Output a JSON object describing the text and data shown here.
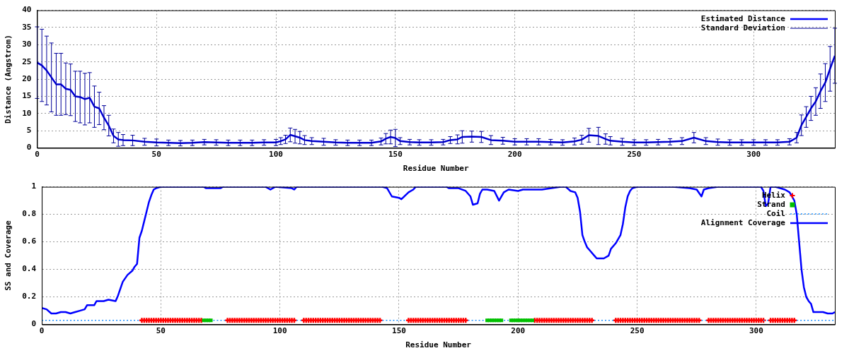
{
  "chart_data": [
    {
      "type": "line",
      "xlabel": "Residue Number",
      "ylabel": "Distance (Angstrom)",
      "xlim": [
        0,
        334
      ],
      "ylim": [
        0,
        40
      ],
      "xticks": [
        0,
        50,
        100,
        150,
        200,
        250,
        300
      ],
      "yticks": [
        0,
        5,
        10,
        15,
        20,
        25,
        30,
        35,
        40
      ],
      "grid": true,
      "legend": "top right",
      "x": [
        0,
        2,
        4,
        6,
        8,
        10,
        12,
        14,
        16,
        18,
        20,
        22,
        24,
        26,
        28,
        30,
        32,
        34,
        36,
        40,
        45,
        50,
        55,
        60,
        65,
        70,
        75,
        80,
        85,
        90,
        95,
        100,
        102,
        104,
        106,
        108,
        110,
        112,
        115,
        120,
        125,
        130,
        135,
        140,
        144,
        146,
        148,
        150,
        152,
        156,
        160,
        165,
        170,
        173,
        176,
        178,
        182,
        186,
        190,
        195,
        200,
        205,
        210,
        215,
        220,
        225,
        228,
        231,
        235,
        238,
        240,
        245,
        250,
        255,
        260,
        265,
        270,
        275,
        280,
        285,
        290,
        295,
        300,
        305,
        310,
        315,
        318,
        320,
        322,
        324,
        326,
        328,
        330,
        332,
        334
      ],
      "series": [
        {
          "name": "Estimated Distance",
          "color": "#0000ff",
          "values": [
            24.8,
            24,
            22.5,
            20.5,
            18.5,
            18.5,
            17.2,
            16.9,
            15,
            14.8,
            14.2,
            14.6,
            12,
            11.5,
            8.8,
            6.5,
            3.5,
            2.5,
            2.3,
            2.2,
            1.8,
            1.6,
            1.5,
            1.4,
            1.5,
            1.7,
            1.6,
            1.5,
            1.5,
            1.5,
            1.6,
            1.6,
            2,
            2.5,
            3.8,
            3.4,
            3,
            2.3,
            2,
            1.8,
            1.6,
            1.5,
            1.5,
            1.5,
            1.9,
            2.7,
            3.2,
            2.9,
            2,
            1.7,
            1.6,
            1.6,
            1.7,
            2.3,
            2.5,
            3.2,
            3.3,
            3.2,
            2.3,
            2.1,
            1.8,
            1.8,
            1.8,
            1.7,
            1.6,
            1.9,
            2.4,
            3.7,
            3.5,
            2.6,
            2.1,
            1.8,
            1.6,
            1.6,
            1.7,
            1.8,
            2,
            3,
            2,
            1.7,
            1.6,
            1.6,
            1.6,
            1.6,
            1.6,
            1.8,
            3,
            6.6,
            9,
            11.5,
            13.5,
            16.5,
            19,
            23,
            26.8
          ]
        },
        {
          "name": "Standard Deviation",
          "color": "#000099",
          "values": [
            24.8,
            24,
            22.5,
            20.5,
            18.5,
            18.5,
            17.2,
            16.9,
            15,
            14.8,
            14.2,
            14.6,
            12,
            11.5,
            8.8,
            6.5,
            3.5,
            2.5,
            2.3,
            2.2,
            1.8,
            1.6,
            1.5,
            1.4,
            1.5,
            1.7,
            1.6,
            1.5,
            1.5,
            1.5,
            1.6,
            1.6,
            2,
            2.5,
            3.8,
            3.4,
            3,
            2.3,
            2,
            1.8,
            1.6,
            1.5,
            1.5,
            1.5,
            1.9,
            2.7,
            3.2,
            2.9,
            2,
            1.7,
            1.6,
            1.6,
            1.7,
            2.3,
            2.5,
            3.2,
            3.3,
            3.2,
            2.3,
            2.1,
            1.8,
            1.8,
            1.8,
            1.7,
            1.6,
            1.9,
            2.4,
            3.7,
            3.5,
            2.6,
            2.1,
            1.8,
            1.6,
            1.6,
            1.7,
            1.8,
            2,
            3,
            2,
            1.7,
            1.6,
            1.6,
            1.6,
            1.6,
            1.6,
            1.8,
            3,
            6.6,
            9,
            11.5,
            13.5,
            16.5,
            19,
            23,
            26.8
          ],
          "errors": [
            10.4,
            10.5,
            10,
            10,
            9,
            9,
            7.5,
            7.5,
            7.3,
            7.5,
            7.5,
            7.3,
            6,
            4.7,
            3.5,
            3,
            2,
            2,
            1.6,
            1.5,
            1,
            1,
            0.8,
            0.8,
            0.8,
            0.8,
            0.8,
            0.8,
            0.8,
            0.8,
            0.8,
            0.9,
            1,
            1.2,
            2,
            2,
            1.8,
            1.3,
            1,
            1,
            0.8,
            0.8,
            0.8,
            0.8,
            1,
            1.5,
            2,
            2.5,
            1,
            0.8,
            0.8,
            0.8,
            0.8,
            1,
            1.3,
            1.8,
            1.6,
            1.6,
            1.3,
            1,
            0.9,
            0.9,
            0.9,
            0.8,
            0.8,
            1,
            1.3,
            2,
            2.5,
            1.5,
            1.2,
            1,
            0.8,
            0.8,
            0.8,
            0.9,
            1,
            1.5,
            1,
            0.9,
            0.8,
            0.8,
            0.8,
            0.8,
            0.8,
            0.9,
            1.5,
            3,
            3,
            3.5,
            4,
            5,
            5.5,
            6.5,
            8
          ]
        }
      ]
    },
    {
      "type": "line",
      "xlabel": "Residue Number",
      "ylabel": "SS and Coverage",
      "xlim": [
        0,
        333
      ],
      "ylim": [
        0,
        1
      ],
      "xticks": [
        0,
        50,
        100,
        150,
        200,
        250,
        300
      ],
      "yticks": [
        0,
        0.2,
        0.4,
        0.6,
        0.8,
        1
      ],
      "grid": true,
      "legend": "top right",
      "series": [
        {
          "name": "Helix",
          "type": "scatter",
          "marker": "cross",
          "color": "#ff0000",
          "x": [
            42,
            43,
            44,
            45,
            46,
            47,
            48,
            49,
            50,
            51,
            52,
            53,
            54,
            55,
            56,
            57,
            58,
            59,
            60,
            61,
            62,
            63,
            64,
            65,
            66,
            67,
            78,
            79,
            80,
            81,
            82,
            83,
            84,
            85,
            86,
            87,
            88,
            89,
            90,
            91,
            92,
            93,
            94,
            95,
            96,
            97,
            98,
            99,
            100,
            101,
            102,
            103,
            104,
            105,
            106,
            110,
            111,
            112,
            113,
            114,
            115,
            116,
            117,
            118,
            119,
            120,
            121,
            122,
            123,
            124,
            125,
            126,
            127,
            128,
            129,
            130,
            131,
            132,
            133,
            134,
            135,
            136,
            137,
            138,
            139,
            140,
            141,
            142,
            154,
            155,
            156,
            157,
            158,
            159,
            160,
            161,
            162,
            163,
            164,
            165,
            166,
            167,
            168,
            169,
            170,
            171,
            172,
            173,
            174,
            175,
            176,
            177,
            178,
            207,
            208,
            209,
            210,
            211,
            212,
            213,
            214,
            215,
            216,
            217,
            218,
            219,
            220,
            221,
            222,
            223,
            224,
            225,
            226,
            227,
            228,
            229,
            230,
            231,
            241,
            242,
            243,
            244,
            245,
            246,
            247,
            248,
            249,
            250,
            251,
            252,
            253,
            254,
            255,
            256,
            257,
            258,
            259,
            260,
            261,
            262,
            263,
            264,
            265,
            266,
            267,
            268,
            269,
            270,
            271,
            272,
            273,
            274,
            275,
            276,
            280,
            281,
            282,
            283,
            284,
            285,
            286,
            287,
            288,
            289,
            290,
            291,
            292,
            293,
            294,
            295,
            296,
            297,
            298,
            299,
            300,
            301,
            302,
            303,
            306,
            307,
            308,
            309,
            310,
            311,
            312,
            313,
            314,
            315,
            316
          ],
          "values": [
            0.03,
            0.03,
            0.03,
            0.03,
            0.03,
            0.03,
            0.03,
            0.03,
            0.03,
            0.03,
            0.03,
            0.03,
            0.03,
            0.03,
            0.03,
            0.03,
            0.03,
            0.03,
            0.03,
            0.03,
            0.03,
            0.03,
            0.03,
            0.03,
            0.03,
            0.03,
            0.03,
            0.03,
            0.03,
            0.03,
            0.03,
            0.03,
            0.03,
            0.03,
            0.03,
            0.03,
            0.03,
            0.03,
            0.03,
            0.03,
            0.03,
            0.03,
            0.03,
            0.03,
            0.03,
            0.03,
            0.03,
            0.03,
            0.03,
            0.03,
            0.03,
            0.03,
            0.03,
            0.03,
            0.03,
            0.03,
            0.03,
            0.03,
            0.03,
            0.03,
            0.03,
            0.03,
            0.03,
            0.03,
            0.03,
            0.03,
            0.03,
            0.03,
            0.03,
            0.03,
            0.03,
            0.03,
            0.03,
            0.03,
            0.03,
            0.03,
            0.03,
            0.03,
            0.03,
            0.03,
            0.03,
            0.03,
            0.03,
            0.03,
            0.03,
            0.03,
            0.03,
            0.03,
            0.03,
            0.03,
            0.03,
            0.03,
            0.03,
            0.03,
            0.03,
            0.03,
            0.03,
            0.03,
            0.03,
            0.03,
            0.03,
            0.03,
            0.03,
            0.03,
            0.03,
            0.03,
            0.03,
            0.03,
            0.03,
            0.03,
            0.03,
            0.03,
            0.03,
            0.03,
            0.03,
            0.03,
            0.03,
            0.03,
            0.03,
            0.03,
            0.03,
            0.03,
            0.03,
            0.03,
            0.03,
            0.03,
            0.03,
            0.03,
            0.03,
            0.03,
            0.03,
            0.03,
            0.03,
            0.03,
            0.03,
            0.03,
            0.03,
            0.03,
            0.03,
            0.03,
            0.03,
            0.03,
            0.03,
            0.03,
            0.03,
            0.03,
            0.03,
            0.03,
            0.03,
            0.03,
            0.03,
            0.03,
            0.03,
            0.03,
            0.03,
            0.03,
            0.03,
            0.03,
            0.03,
            0.03,
            0.03,
            0.03,
            0.03,
            0.03,
            0.03,
            0.03,
            0.03,
            0.03,
            0.03,
            0.03,
            0.03,
            0.03,
            0.03,
            0.03,
            0.03,
            0.03,
            0.03,
            0.03,
            0.03,
            0.03,
            0.03,
            0.03,
            0.03,
            0.03,
            0.03,
            0.03,
            0.03,
            0.03,
            0.03,
            0.03,
            0.03,
            0.03,
            0.03,
            0.03,
            0.03,
            0.03,
            0.03,
            0.03,
            0.03,
            0.03,
            0.03,
            0.03,
            0.03,
            0.03,
            0.03,
            0.03,
            0.03,
            0.03,
            0.03
          ]
        },
        {
          "name": "Strand",
          "type": "scatter",
          "marker": "square",
          "color": "#00c000",
          "x": [
            68,
            69,
            70,
            71,
            187,
            188,
            189,
            190,
            191,
            192,
            193,
            197,
            198,
            199,
            200,
            201,
            202,
            203,
            204,
            205,
            206
          ],
          "values": [
            0.03,
            0.03,
            0.03,
            0.03,
            0.03,
            0.03,
            0.03,
            0.03,
            0.03,
            0.03,
            0.03,
            0.03,
            0.03,
            0.03,
            0.03,
            0.03,
            0.03,
            0.03,
            0.03,
            0.03,
            0.03
          ]
        },
        {
          "name": "Coil",
          "line_style": "dotted",
          "color": "#1e90ff",
          "x": [
            0,
            41,
            42,
            72,
            77,
            78,
            107,
            109,
            110,
            143,
            153,
            154,
            179,
            186,
            187,
            194,
            196,
            197,
            232,
            240,
            241,
            277,
            279,
            280,
            303,
            306,
            307,
            317,
            333
          ],
          "values": [
            0.03,
            0.03,
            null,
            0.03,
            0.03,
            null,
            0.03,
            0.03,
            null,
            0.03,
            0.03,
            null,
            0.03,
            0.03,
            null,
            0.03,
            0.03,
            null,
            0.03,
            0.03,
            null,
            0.03,
            0.03,
            null,
            0.03,
            0.03,
            null,
            0.03,
            0.03
          ]
        },
        {
          "name": "Alignment Coverage",
          "color": "#0000ff",
          "x": [
            0,
            2,
            4,
            6,
            8,
            10,
            12,
            14,
            16,
            18,
            19,
            22,
            23,
            26,
            28,
            31,
            32,
            34,
            36,
            38,
            39,
            40,
            41,
            42,
            43,
            44,
            45,
            46,
            47,
            48,
            50,
            68,
            69,
            75,
            76,
            94,
            96,
            98,
            105,
            106,
            107,
            143,
            145,
            147,
            150,
            151,
            154,
            156,
            157,
            170,
            171,
            175,
            178,
            180,
            181,
            183,
            184,
            185,
            187,
            190,
            192,
            194,
            196,
            200,
            202,
            210,
            214,
            218,
            220,
            222,
            224,
            225,
            226,
            227,
            228,
            229,
            230,
            232,
            233,
            236,
            238,
            239,
            241,
            243,
            244,
            245,
            246,
            247,
            248,
            250,
            265,
            272,
            275,
            277,
            278,
            280,
            284,
            302,
            303,
            304,
            305,
            306,
            308,
            310,
            312,
            314,
            316,
            317,
            318,
            319,
            320,
            321,
            322,
            323,
            324,
            328,
            330,
            332,
            333
          ],
          "values": [
            0.12,
            0.11,
            0.08,
            0.08,
            0.09,
            0.09,
            0.08,
            0.09,
            0.1,
            0.11,
            0.14,
            0.14,
            0.17,
            0.17,
            0.18,
            0.17,
            0.21,
            0.31,
            0.36,
            0.39,
            0.42,
            0.44,
            0.63,
            0.68,
            0.75,
            0.82,
            0.89,
            0.94,
            0.98,
            0.99,
            1,
            1,
            0.99,
            0.99,
            1,
            1,
            0.98,
            1,
            0.99,
            0.98,
            1,
            1,
            0.99,
            0.93,
            0.92,
            0.91,
            0.96,
            0.98,
            1,
            1,
            0.99,
            0.99,
            0.97,
            0.93,
            0.87,
            0.88,
            0.95,
            0.98,
            0.98,
            0.97,
            0.9,
            0.96,
            0.98,
            0.97,
            0.98,
            0.98,
            0.99,
            1,
            1,
            0.97,
            0.96,
            0.92,
            0.82,
            0.65,
            0.6,
            0.56,
            0.54,
            0.5,
            0.48,
            0.48,
            0.5,
            0.55,
            0.59,
            0.65,
            0.73,
            0.85,
            0.93,
            0.97,
            0.99,
            1,
            1,
            0.99,
            0.98,
            0.93,
            0.98,
            0.99,
            1,
            1,
            0.97,
            0.86,
            0.88,
            1,
            1,
            0.99,
            0.98,
            0.96,
            0.9,
            0.8,
            0.6,
            0.4,
            0.27,
            0.2,
            0.17,
            0.15,
            0.09,
            0.09,
            0.08,
            0.08,
            0.09
          ]
        }
      ]
    }
  ]
}
